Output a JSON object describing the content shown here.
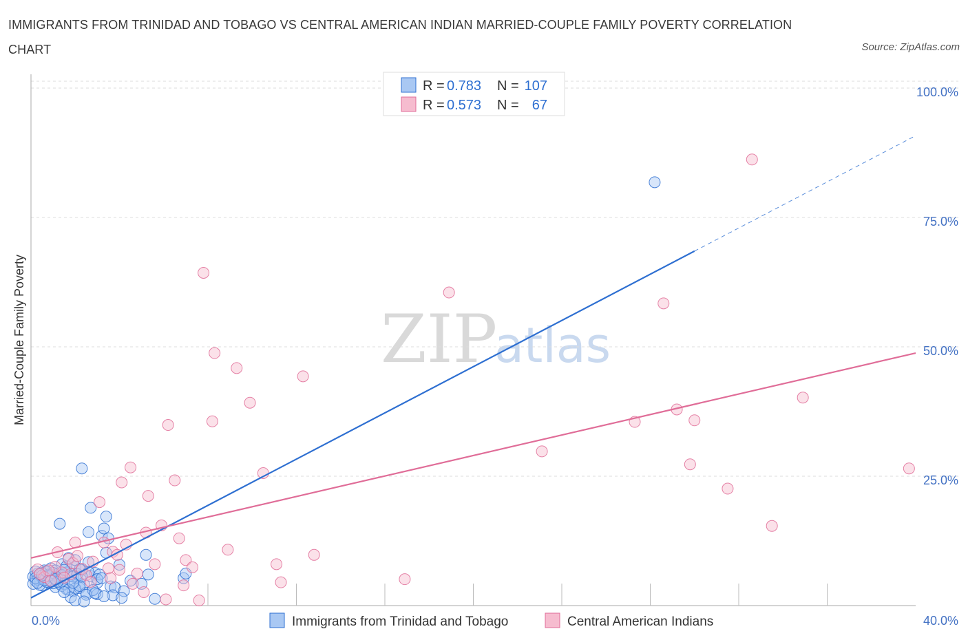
{
  "header": {
    "title": "IMMIGRANTS FROM TRINIDAD AND TOBAGO VS CENTRAL AMERICAN INDIAN MARRIED-COUPLE FAMILY POVERTY CORRELATION CHART",
    "source": "Source: ZipAtlas.com"
  },
  "watermark": {
    "zip": "ZIP",
    "atlas": "atlas"
  },
  "legend": {
    "series1": {
      "r_label": "R =",
      "r_value": "0.783",
      "n_label": "N =",
      "n_value": "107"
    },
    "series2": {
      "r_label": "R =",
      "r_value": "0.573",
      "n_label": "N =",
      "n_value": "67"
    }
  },
  "bottom_legend": {
    "series1": "Immigrants from Trinidad and Tobago",
    "series2": "Central American Indians"
  },
  "colors": {
    "blue": "#2e6fd1",
    "blue_fill": "#a9c8f3",
    "pink": "#e06d98",
    "pink_fill": "#f6bccf",
    "tick_blue": "#4472c4",
    "grid": "#dddddd"
  },
  "chart_data": {
    "type": "scatter",
    "title": "IMMIGRANTS FROM TRINIDAD AND TOBAGO VS CENTRAL AMERICAN INDIAN MARRIED-COUPLE FAMILY POVERTY CORRELATION CHART",
    "xlabel": "",
    "ylabel": "Married-Couple Family Poverty",
    "xlim": [
      0,
      40
    ],
    "ylim": [
      0,
      100
    ],
    "x_tick_labels": [
      "0.0%",
      "40.0%"
    ],
    "y_tick_labels": [
      "100.0%",
      "75.0%",
      "50.0%",
      "25.0%"
    ],
    "y_ticks": [
      100,
      75,
      50,
      25
    ],
    "grid": true,
    "legend_position": "top-center",
    "series": [
      {
        "name": "Immigrants from Trinidad and Tobago",
        "color": "#2e6fd1",
        "r": 0.783,
        "n": 107,
        "trend": {
          "x": [
            0,
            30
          ],
          "y": [
            1.5,
            68.5
          ],
          "dashed_to": [
            40,
            90.8
          ]
        },
        "points": [
          [
            0.1,
            5.6
          ],
          [
            0.2,
            4.8
          ],
          [
            0.3,
            6.2
          ],
          [
            0.4,
            5.1
          ],
          [
            0.5,
            3.9
          ],
          [
            0.6,
            6.8
          ],
          [
            0.7,
            5.4
          ],
          [
            0.8,
            4.5
          ],
          [
            0.9,
            7.2
          ],
          [
            1.0,
            5.9
          ],
          [
            1.1,
            3.6
          ],
          [
            1.2,
            6.1
          ],
          [
            1.3,
            4.2
          ],
          [
            1.4,
            8.0
          ],
          [
            1.5,
            5.0
          ],
          [
            1.6,
            3.2
          ],
          [
            1.7,
            6.5
          ],
          [
            1.8,
            4.7
          ],
          [
            1.9,
            2.8
          ],
          [
            2.0,
            7.5
          ],
          [
            2.1,
            5.3
          ],
          [
            2.2,
            3.4
          ],
          [
            2.3,
            6.9
          ],
          [
            2.4,
            4.1
          ],
          [
            2.5,
            2.5
          ],
          [
            2.6,
            8.4
          ],
          [
            2.7,
            5.7
          ],
          [
            2.8,
            3.0
          ],
          [
            2.9,
            6.3
          ],
          [
            3.0,
            4.4
          ],
          [
            0.2,
            6.6
          ],
          [
            0.4,
            4.0
          ],
          [
            0.6,
            5.2
          ],
          [
            0.8,
            6.0
          ],
          [
            1.0,
            4.3
          ],
          [
            1.2,
            5.5
          ],
          [
            1.4,
            3.8
          ],
          [
            1.6,
            6.4
          ],
          [
            1.8,
            5.8
          ],
          [
            2.0,
            3.3
          ],
          [
            0.3,
            5.0
          ],
          [
            0.5,
            6.3
          ],
          [
            0.7,
            4.6
          ],
          [
            0.9,
            5.9
          ],
          [
            1.1,
            6.8
          ],
          [
            1.3,
            5.2
          ],
          [
            1.5,
            4.2
          ],
          [
            1.7,
            3.1
          ],
          [
            1.9,
            5.6
          ],
          [
            2.1,
            6.1
          ],
          [
            1.3,
            15.8
          ],
          [
            2.3,
            26.5
          ],
          [
            2.7,
            18.9
          ],
          [
            2.6,
            14.2
          ],
          [
            3.4,
            17.2
          ],
          [
            3.2,
            13.5
          ],
          [
            3.5,
            13.0
          ],
          [
            3.3,
            14.9
          ],
          [
            3.4,
            10.2
          ],
          [
            4.0,
            7.9
          ],
          [
            3.1,
            6.0
          ],
          [
            3.6,
            3.7
          ],
          [
            3.8,
            3.5
          ],
          [
            4.2,
            2.8
          ],
          [
            4.5,
            4.8
          ],
          [
            5.0,
            4.2
          ],
          [
            5.3,
            6.0
          ],
          [
            5.2,
            9.8
          ],
          [
            5.6,
            1.3
          ],
          [
            6.9,
            5.3
          ],
          [
            7.0,
            6.2
          ],
          [
            3.0,
            2.2
          ],
          [
            2.8,
            3.0
          ],
          [
            2.5,
            2.1
          ],
          [
            2.2,
            3.8
          ],
          [
            1.8,
            1.6
          ],
          [
            1.5,
            2.6
          ],
          [
            2.0,
            1.0
          ],
          [
            2.4,
            0.8
          ],
          [
            3.7,
            2.0
          ],
          [
            4.1,
            1.5
          ],
          [
            2.9,
            2.4
          ],
          [
            3.3,
            1.8
          ],
          [
            1.6,
            7.6
          ],
          [
            2.0,
            8.8
          ],
          [
            1.7,
            9.2
          ],
          [
            2.2,
            7.0
          ],
          [
            2.6,
            6.5
          ],
          [
            3.0,
            5.1
          ],
          [
            3.2,
            5.3
          ],
          [
            0.1,
            4.2
          ],
          [
            0.2,
            5.3
          ],
          [
            0.4,
            6.1
          ],
          [
            0.6,
            4.9
          ],
          [
            0.8,
            5.7
          ],
          [
            1.0,
            6.3
          ],
          [
            1.2,
            4.6
          ],
          [
            1.4,
            5.9
          ],
          [
            0.3,
            4.4
          ],
          [
            0.5,
            5.8
          ],
          [
            0.7,
            6.6
          ],
          [
            0.9,
            4.8
          ],
          [
            1.1,
            5.1
          ],
          [
            1.5,
            6.9
          ],
          [
            1.9,
            4.4
          ],
          [
            2.3,
            5.6
          ],
          [
            28.2,
            81.8
          ]
        ]
      },
      {
        "name": "Central American Indians",
        "color": "#e06d98",
        "r": 0.573,
        "n": 67,
        "trend": {
          "x": [
            0,
            40
          ],
          "y": [
            9.2,
            48.8
          ]
        },
        "points": [
          [
            0.3,
            7.0
          ],
          [
            0.6,
            5.5
          ],
          [
            0.9,
            4.8
          ],
          [
            1.2,
            10.3
          ],
          [
            1.4,
            6.4
          ],
          [
            1.7,
            9.0
          ],
          [
            1.9,
            8.2
          ],
          [
            2.0,
            12.2
          ],
          [
            2.3,
            7.1
          ],
          [
            2.5,
            5.9
          ],
          [
            2.8,
            8.5
          ],
          [
            3.1,
            20.0
          ],
          [
            3.3,
            12.2
          ],
          [
            3.5,
            7.2
          ],
          [
            3.7,
            10.4
          ],
          [
            3.9,
            9.8
          ],
          [
            4.1,
            23.8
          ],
          [
            4.3,
            11.8
          ],
          [
            4.5,
            26.7
          ],
          [
            4.8,
            6.2
          ],
          [
            5.2,
            14.1
          ],
          [
            5.3,
            21.2
          ],
          [
            5.6,
            8.0
          ],
          [
            5.9,
            15.5
          ],
          [
            6.2,
            34.9
          ],
          [
            6.5,
            24.2
          ],
          [
            6.7,
            13.0
          ],
          [
            7.0,
            8.8
          ],
          [
            7.3,
            7.4
          ],
          [
            7.6,
            1.0
          ],
          [
            7.8,
            64.3
          ],
          [
            8.2,
            35.6
          ],
          [
            8.3,
            48.8
          ],
          [
            8.9,
            10.8
          ],
          [
            9.3,
            45.9
          ],
          [
            9.9,
            39.2
          ],
          [
            10.5,
            25.6
          ],
          [
            11.1,
            8.0
          ],
          [
            11.3,
            4.5
          ],
          [
            12.3,
            44.3
          ],
          [
            12.8,
            9.8
          ],
          [
            16.9,
            5.1
          ],
          [
            18.9,
            60.5
          ],
          [
            23.1,
            29.8
          ],
          [
            27.3,
            35.5
          ],
          [
            28.6,
            58.4
          ],
          [
            29.2,
            37.9
          ],
          [
            29.8,
            27.3
          ],
          [
            30.0,
            35.8
          ],
          [
            31.5,
            22.6
          ],
          [
            32.6,
            86.2
          ],
          [
            33.5,
            15.4
          ],
          [
            34.9,
            40.2
          ],
          [
            39.7,
            26.5
          ],
          [
            4.6,
            4.2
          ],
          [
            5.1,
            2.6
          ],
          [
            6.1,
            1.2
          ],
          [
            6.9,
            3.9
          ],
          [
            1.1,
            7.5
          ],
          [
            1.8,
            6.1
          ],
          [
            2.7,
            4.6
          ],
          [
            3.6,
            5.3
          ],
          [
            4.0,
            6.9
          ],
          [
            0.8,
            6.8
          ],
          [
            1.5,
            5.4
          ],
          [
            2.1,
            9.6
          ],
          [
            0.4,
            6.1
          ]
        ]
      }
    ]
  }
}
